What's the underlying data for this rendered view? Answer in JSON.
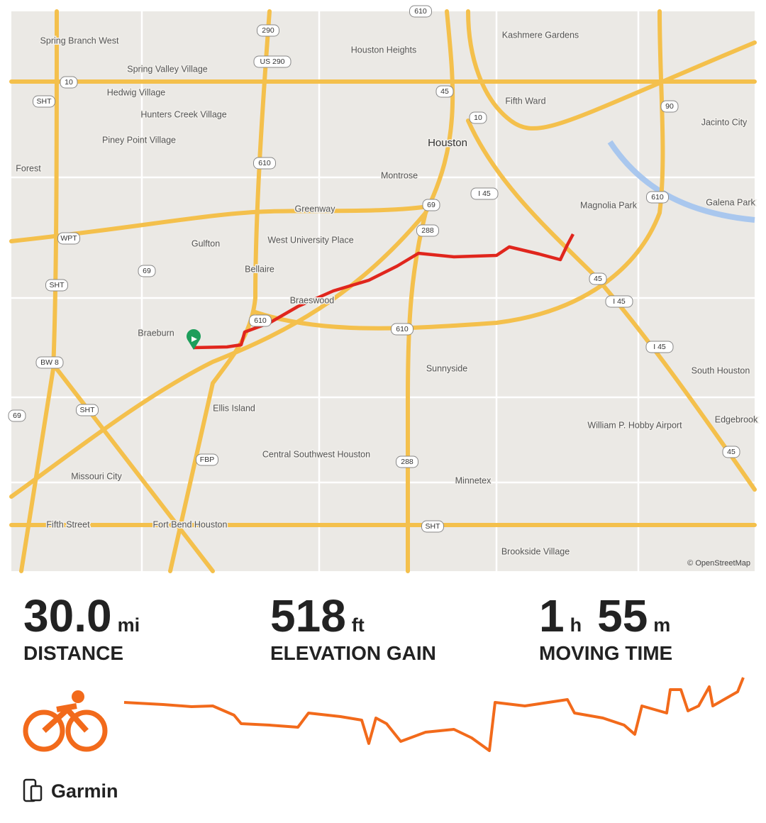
{
  "map": {
    "places": [
      "Spring Branch West",
      "Spring Valley Village",
      "Hedwig Village",
      "Hunters Creek Village",
      "Piney Point Village",
      "Forest",
      "Houston Heights",
      "Kashmere Gardens",
      "Fifth Ward",
      "Houston",
      "Jacinto City",
      "Montrose",
      "Greenway",
      "Magnolia Park",
      "Galena Park",
      "Gulfton",
      "West University Place",
      "Bellaire",
      "Braeswood",
      "Braeburn",
      "Sunnyside",
      "South Houston",
      "Ellis Island",
      "William P. Hobby Airport",
      "Edgebrook",
      "Central Southwest Houston",
      "Missouri City",
      "Minnetex",
      "Fifth Street",
      "Fort Bend Houston",
      "Brookside Village"
    ],
    "shields": [
      "610",
      "290",
      "US 290",
      "10",
      "SHT",
      "45",
      "10",
      "90",
      "610",
      "I 45",
      "69",
      "610",
      "WPT",
      "288",
      "69",
      "SHT",
      "45",
      "I 45",
      "610",
      "610",
      "I 45",
      "BW 8",
      "SHT",
      "69",
      "FBP",
      "288",
      "45",
      "SHT"
    ],
    "attribution": "© OpenStreetMap"
  },
  "stats": [
    {
      "parts": [
        {
          "value": "30.0",
          "unit": "mi"
        }
      ],
      "label": "DISTANCE"
    },
    {
      "parts": [
        {
          "value": "518",
          "unit": "ft"
        }
      ],
      "label": "ELEVATION GAIN"
    },
    {
      "parts": [
        {
          "value": "1",
          "unit": "h"
        },
        {
          "value": "55",
          "unit": "m"
        }
      ],
      "label": "MOVING TIME"
    }
  ],
  "device": "Garmin"
}
